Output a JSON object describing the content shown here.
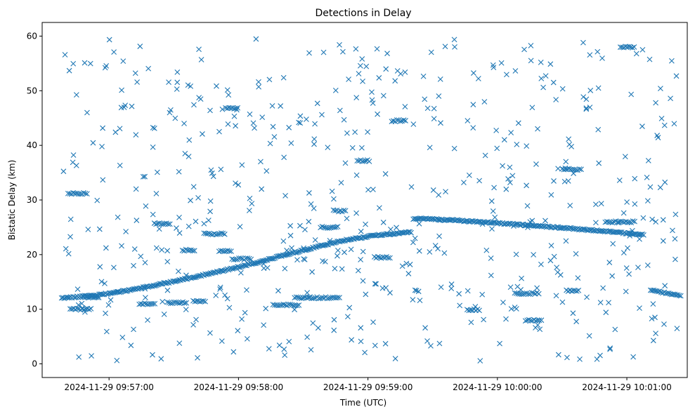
{
  "chart_data": {
    "type": "scatter",
    "title": "Detections in Delay",
    "xlabel": "Time (UTC)",
    "ylabel": "Bistatic Delay (km)",
    "marker": "x",
    "color": "#1f77b4",
    "grid": false,
    "xlim_seconds": [
      -31,
      268
    ],
    "ylim": [
      -2.5,
      62.5
    ],
    "x_ticks": [
      {
        "t": 0,
        "label": "2024-11-29 09:57:00"
      },
      {
        "t": 60,
        "label": "2024-11-29 09:58:00"
      },
      {
        "t": 120,
        "label": "2024-11-29 09:59:00"
      },
      {
        "t": 180,
        "label": "2024-11-29 10:00:00"
      },
      {
        "t": 240,
        "label": "2024-11-29 10:01:00"
      }
    ],
    "y_ticks": [
      {
        "v": 0,
        "label": "0"
      },
      {
        "v": 10,
        "label": "10"
      },
      {
        "v": 20,
        "label": "20"
      },
      {
        "v": 30,
        "label": "30"
      },
      {
        "v": 40,
        "label": "40"
      },
      {
        "v": 50,
        "label": "50"
      },
      {
        "v": 60,
        "label": "60"
      }
    ],
    "main_track_1": {
      "t_start": -22,
      "t_end": 140,
      "step": 0.6,
      "values": [
        [
          -22,
          12.0
        ],
        [
          -5,
          12.6
        ],
        [
          10,
          13.5
        ],
        [
          20,
          14.3
        ],
        [
          35,
          15.5
        ],
        [
          50,
          16.8
        ],
        [
          65,
          18.2
        ],
        [
          80,
          19.8
        ],
        [
          95,
          21.3
        ],
        [
          110,
          22.7
        ],
        [
          125,
          23.6
        ],
        [
          140,
          24.1
        ]
      ]
    },
    "main_track_2": {
      "t_start": 141,
      "t_end": 248,
      "step": 0.6,
      "values": [
        [
          141,
          26.6
        ],
        [
          160,
          26.3
        ],
        [
          180,
          25.8
        ],
        [
          200,
          25.2
        ],
        [
          220,
          24.6
        ],
        [
          235,
          24.1
        ],
        [
          248,
          23.6
        ]
      ]
    },
    "tail_track": {
      "t_start": 251,
      "t_end": 265,
      "step": 0.7,
      "values": [
        [
          251,
          13.5
        ],
        [
          265,
          12.4
        ]
      ]
    },
    "segments": [
      {
        "t_start": -19,
        "t_end": -10,
        "y": 31.2
      },
      {
        "t_start": -18,
        "t_end": -8,
        "y": 10.0
      },
      {
        "t_start": -12,
        "t_end": -4,
        "y": 12.2
      },
      {
        "t_start": 14,
        "t_end": 22,
        "y": 11.0
      },
      {
        "t_start": 21,
        "t_end": 29,
        "y": 25.7
      },
      {
        "t_start": 27,
        "t_end": 36,
        "y": 11.2
      },
      {
        "t_start": 34,
        "t_end": 40,
        "y": 20.8
      },
      {
        "t_start": 39,
        "t_end": 45,
        "y": 11.5
      },
      {
        "t_start": 44,
        "t_end": 54,
        "y": 23.8
      },
      {
        "t_start": 51,
        "t_end": 57,
        "y": 20.7
      },
      {
        "t_start": 54,
        "t_end": 60,
        "y": 46.8
      },
      {
        "t_start": 57,
        "t_end": 66,
        "y": 19.2
      },
      {
        "t_start": 76,
        "t_end": 88,
        "y": 10.8
      },
      {
        "t_start": 86,
        "t_end": 107,
        "y": 12.1
      },
      {
        "t_start": 98,
        "t_end": 106,
        "y": 25.0
      },
      {
        "t_start": 104,
        "t_end": 110,
        "y": 28.0
      },
      {
        "t_start": 115,
        "t_end": 121,
        "y": 37.2
      },
      {
        "t_start": 123,
        "t_end": 131,
        "y": 19.5
      },
      {
        "t_start": 131,
        "t_end": 138,
        "y": 44.5
      },
      {
        "t_start": 166,
        "t_end": 172,
        "y": 9.9
      },
      {
        "t_start": 188,
        "t_end": 200,
        "y": 12.9
      },
      {
        "t_start": 193,
        "t_end": 200,
        "y": 8.0
      },
      {
        "t_start": 210,
        "t_end": 219,
        "y": 35.6
      },
      {
        "t_start": 212,
        "t_end": 218,
        "y": 13.4
      },
      {
        "t_start": 230,
        "t_end": 244,
        "y": 26.0
      },
      {
        "t_start": 237,
        "t_end": 244,
        "y": 58.0
      }
    ],
    "random_background": {
      "count": 560,
      "t_range": [
        -22,
        265
      ],
      "y_range": [
        0.5,
        59.5
      ],
      "seed": 20241129
    }
  }
}
